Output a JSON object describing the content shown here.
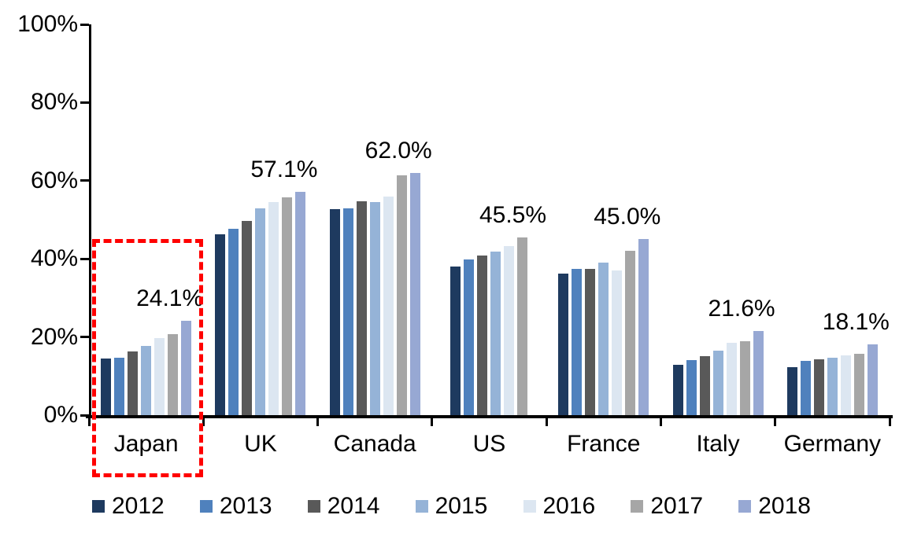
{
  "chart_data": {
    "type": "bar",
    "title": "",
    "xlabel": "",
    "ylabel": "",
    "ylim": [
      0,
      100
    ],
    "grid": false,
    "legend_position": "bottom",
    "categories": [
      "Japan",
      "UK",
      "Canada",
      "US",
      "France",
      "Italy",
      "Germany"
    ],
    "y_ticks": [
      "0%",
      "20%",
      "40%",
      "60%",
      "80%",
      "100%"
    ],
    "series": [
      {
        "name": "2012",
        "color": "#1e3a5f",
        "values": [
          14.5,
          46.2,
          52.8,
          38.0,
          36.2,
          12.9,
          12.2
        ]
      },
      {
        "name": "2013",
        "color": "#4f81bd",
        "values": [
          14.7,
          47.6,
          53.0,
          39.8,
          37.4,
          14.0,
          13.8
        ]
      },
      {
        "name": "2014",
        "color": "#595959",
        "values": [
          16.3,
          49.8,
          54.7,
          40.8,
          37.4,
          15.1,
          14.2
        ]
      },
      {
        "name": "2015",
        "color": "#95b3d7",
        "values": [
          17.8,
          53.0,
          54.5,
          41.8,
          39.1,
          16.6,
          14.6
        ]
      },
      {
        "name": "2016",
        "color": "#dce6f1",
        "values": [
          19.7,
          54.5,
          56.0,
          43.3,
          37.1,
          18.6,
          15.3
        ]
      },
      {
        "name": "2017",
        "color": "#a6a6a6",
        "values": [
          20.8,
          55.7,
          61.4,
          45.5,
          42.1,
          19.0,
          15.7
        ]
      },
      {
        "name": "2018",
        "color": "#97a8d3",
        "values": [
          24.1,
          57.1,
          62.0,
          null,
          45.0,
          21.6,
          18.1
        ]
      }
    ],
    "data_labels": [
      {
        "category": "Japan",
        "text": "24.1%"
      },
      {
        "category": "UK",
        "text": "57.1%"
      },
      {
        "category": "Canada",
        "text": "62.0%"
      },
      {
        "category": "US",
        "text": "45.5%"
      },
      {
        "category": "France",
        "text": "45.0%"
      },
      {
        "category": "Italy",
        "text": "21.6%"
      },
      {
        "category": "Germany",
        "text": "18.1%"
      }
    ],
    "annotation": {
      "type": "dashed-box",
      "target": "Japan",
      "color": "#ff0000"
    }
  }
}
